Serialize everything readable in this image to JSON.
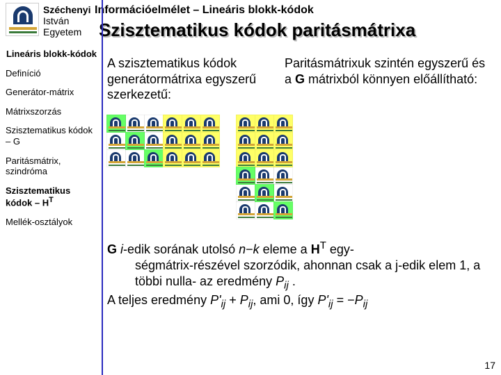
{
  "header": {
    "university_line1": "Széchenyi",
    "university_line2": "István",
    "university_line3": "Egyetem",
    "course": "Információelmélet – Lineáris blokk-kódok",
    "title": "Szisztematikus kódok paritásmátrixa"
  },
  "sidebar": {
    "items": [
      {
        "label": "Lineáris blokk-kódok",
        "key": "nav-title",
        "active": true,
        "align": "center"
      },
      {
        "label": "Definíció",
        "key": "nav-def",
        "active": false,
        "align": "left"
      },
      {
        "label": "Generátor-mátrix",
        "key": "nav-gen",
        "active": false,
        "align": "left"
      },
      {
        "label": "Mátrixszorzás",
        "key": "nav-mat",
        "active": false,
        "align": "left"
      },
      {
        "label": "Szisztematikus kódok – G",
        "key": "nav-g",
        "active": false,
        "align": "left"
      },
      {
        "label": "Paritásmátrix, szindróma",
        "key": "nav-par",
        "active": false,
        "align": "left"
      },
      {
        "label_html": "Szisztematikus kódok – H<sup>T</sup>",
        "key": "nav-hat",
        "active": true,
        "align": "left"
      },
      {
        "label": "Mellék-osztályok",
        "key": "nav-mell",
        "active": false,
        "align": "left"
      }
    ]
  },
  "content": {
    "col1": "A szisztematikus kódok generátormátrixa egyszerű szerkezetű:",
    "col2_html": "Paritásmátrixuk szintén egyszerű és a <b>G</b> mátrixból könnyen előállítható:",
    "matrix_G": {
      "rows": 3,
      "cols": 6,
      "diagonal_highlight": "green",
      "right_block_cols": 3,
      "right_block_highlight": "yellow"
    },
    "matrix_HT": {
      "rows": 6,
      "cols": 3,
      "top_block_rows": 3,
      "top_block_highlight": "yellow",
      "bottom_diagonal_highlight": "green"
    },
    "body_para1_html": "<b>G</b> <i>i</i>-edik sorának utolsó <i>n</i>−<i>k</i> eleme a <b>H</b><sup>T</sup> egy-",
    "body_para1b_html": "ségmátrix-részével szorzódik, ahonnan csak a j-edik elem 1, a többi nulla- az eredmény <i>P<sub>ij</sub></i> .",
    "body_para2_html": "A teljes eredmény <i>P'<sub>ij</sub></i> + <i>P<sub>ij</sub></i>, ami 0, így <i>P'<sub>ij</sub></i> = −<i>P<sub>ij</sub></i>",
    "page": "17"
  },
  "colors": {
    "accent": "#2a2abf",
    "highlight_green": "#66ff66",
    "highlight_yellow": "#ffff66",
    "logo_navy": "#1a3a6e",
    "logo_gold": "#d4a537",
    "logo_green": "#3a7a3a"
  }
}
